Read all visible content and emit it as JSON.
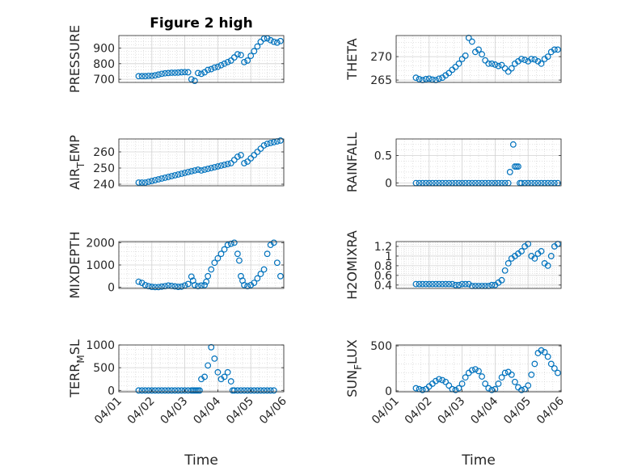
{
  "figure": {
    "background": "#ffffff",
    "marker_color": "#0072BD",
    "grid_color": "#d0d0d0"
  },
  "chart_data": [
    {
      "type": "scatter",
      "title": "Figure 2 high",
      "ylabel": "PRESSURE",
      "xlabel": "",
      "xlim": [
        0,
        5
      ],
      "ylim": [
        680,
        980
      ],
      "yticks": [
        700,
        800,
        900
      ],
      "xticks": [],
      "xticklabels": [],
      "grid": true,
      "x": [
        0.6,
        0.7,
        0.8,
        0.9,
        1.0,
        1.1,
        1.2,
        1.3,
        1.4,
        1.5,
        1.6,
        1.7,
        1.8,
        1.9,
        2.0,
        2.1,
        2.2,
        2.3,
        2.4,
        2.5,
        2.6,
        2.7,
        2.8,
        2.9,
        3.0,
        3.1,
        3.2,
        3.3,
        3.4,
        3.5,
        3.6,
        3.7,
        3.8,
        3.9,
        4.0,
        4.1,
        4.2,
        4.3,
        4.4,
        4.5,
        4.6,
        4.7,
        4.8,
        4.9
      ],
      "y": [
        720,
        720,
        720,
        722,
        722,
        725,
        730,
        735,
        738,
        740,
        742,
        742,
        743,
        745,
        746,
        745,
        700,
        690,
        740,
        735,
        745,
        760,
        765,
        775,
        780,
        790,
        800,
        810,
        820,
        840,
        860,
        855,
        810,
        820,
        850,
        880,
        910,
        940,
        960,
        962,
        950,
        940,
        935,
        945
      ]
    },
    {
      "type": "scatter",
      "ylabel": "THETA",
      "xlabel": "",
      "xlim": [
        0,
        5
      ],
      "ylim": [
        264.5,
        274.5
      ],
      "yticks": [
        265,
        270
      ],
      "xticks": [],
      "xticklabels": [],
      "grid": true,
      "x": [
        0.6,
        0.7,
        0.8,
        0.9,
        1.0,
        1.1,
        1.2,
        1.3,
        1.4,
        1.5,
        1.6,
        1.7,
        1.8,
        1.9,
        2.0,
        2.1,
        2.2,
        2.3,
        2.4,
        2.5,
        2.6,
        2.7,
        2.8,
        2.9,
        3.0,
        3.1,
        3.2,
        3.3,
        3.4,
        3.5,
        3.6,
        3.7,
        3.8,
        3.9,
        4.0,
        4.1,
        4.2,
        4.3,
        4.4,
        4.5,
        4.6,
        4.7,
        4.8,
        4.9
      ],
      "y": [
        265.5,
        265.2,
        265.0,
        265.2,
        265.3,
        265.1,
        265.0,
        265.3,
        265.5,
        266.0,
        266.5,
        267.2,
        267.8,
        268.5,
        269.5,
        270.2,
        274.0,
        273.2,
        271.0,
        271.5,
        270.5,
        269.2,
        268.5,
        268.5,
        268.3,
        268.0,
        268.2,
        267.5,
        266.8,
        267.5,
        268.5,
        269.0,
        269.5,
        269.3,
        269.0,
        269.5,
        269.4,
        269.0,
        268.5,
        269.5,
        270.0,
        271.0,
        271.5,
        271.5
      ]
    },
    {
      "type": "scatter",
      "ylabel": "AIR_TEMP",
      "ylabel_main": "AIR",
      "ylabel_sub": "T",
      "ylabel_rest": "EMP",
      "xlabel": "",
      "xlim": [
        0,
        5
      ],
      "ylim": [
        239,
        268
      ],
      "yticks": [
        240,
        250,
        260
      ],
      "xticks": [],
      "xticklabels": [],
      "grid": true,
      "x": [
        0.6,
        0.7,
        0.8,
        0.9,
        1.0,
        1.1,
        1.2,
        1.3,
        1.4,
        1.5,
        1.6,
        1.7,
        1.8,
        1.9,
        2.0,
        2.1,
        2.2,
        2.3,
        2.4,
        2.5,
        2.6,
        2.7,
        2.8,
        2.9,
        3.0,
        3.1,
        3.2,
        3.3,
        3.4,
        3.5,
        3.6,
        3.7,
        3.8,
        3.9,
        4.0,
        4.1,
        4.2,
        4.3,
        4.4,
        4.5,
        4.6,
        4.7,
        4.8,
        4.9
      ],
      "y": [
        241,
        241,
        241,
        241.5,
        242,
        242.5,
        243,
        243.5,
        244,
        244.5,
        245,
        245.5,
        246,
        246.5,
        247,
        247.5,
        248,
        248.5,
        249,
        248.5,
        249,
        249.5,
        250,
        250.5,
        251,
        251.5,
        252,
        252.5,
        253,
        255,
        257,
        258,
        253,
        254,
        256,
        258,
        260,
        262,
        264,
        265,
        265.5,
        266,
        266.5,
        267
      ]
    },
    {
      "type": "scatter",
      "ylabel": "RAINFALL",
      "xlabel": "",
      "xlim": [
        0,
        5
      ],
      "ylim": [
        -0.05,
        0.8
      ],
      "yticks": [
        0,
        0.5
      ],
      "xticks": [],
      "xticklabels": [],
      "grid": true,
      "x": [
        0.6,
        0.7,
        0.8,
        0.9,
        1.0,
        1.1,
        1.2,
        1.3,
        1.4,
        1.5,
        1.6,
        1.7,
        1.8,
        1.9,
        2.0,
        2.1,
        2.2,
        2.3,
        2.4,
        2.5,
        2.6,
        2.7,
        2.8,
        2.9,
        3.0,
        3.1,
        3.2,
        3.3,
        3.4,
        3.45,
        3.55,
        3.6,
        3.65,
        3.7,
        3.75,
        3.8,
        3.9,
        4.0,
        4.1,
        4.2,
        4.3,
        4.4,
        4.5,
        4.6,
        4.7,
        4.8,
        4.9
      ],
      "y": [
        0,
        0,
        0,
        0,
        0,
        0,
        0,
        0,
        0,
        0,
        0,
        0,
        0,
        0,
        0,
        0,
        0,
        0,
        0,
        0,
        0,
        0,
        0,
        0,
        0,
        0,
        0,
        0,
        0,
        0.2,
        0.7,
        0.3,
        0.3,
        0.3,
        0,
        0,
        0,
        0,
        0,
        0,
        0,
        0,
        0,
        0,
        0,
        0,
        0
      ]
    },
    {
      "type": "scatter",
      "ylabel": "MIXDEPTH",
      "xlabel": "",
      "xlim": [
        0,
        5
      ],
      "ylim": [
        -50,
        2050
      ],
      "yticks": [
        0,
        1000,
        2000
      ],
      "xticks": [],
      "xticklabels": [],
      "grid": true,
      "x": [
        0.6,
        0.7,
        0.8,
        0.9,
        1.0,
        1.1,
        1.2,
        1.3,
        1.4,
        1.5,
        1.6,
        1.7,
        1.8,
        1.9,
        2.0,
        2.1,
        2.2,
        2.25,
        2.3,
        2.4,
        2.5,
        2.6,
        2.65,
        2.7,
        2.8,
        2.9,
        3.0,
        3.1,
        3.2,
        3.3,
        3.4,
        3.5,
        3.6,
        3.65,
        3.7,
        3.75,
        3.8,
        3.9,
        4.0,
        4.1,
        4.2,
        4.3,
        4.4,
        4.5,
        4.6,
        4.7,
        4.8,
        4.9
      ],
      "y": [
        250,
        200,
        100,
        50,
        20,
        10,
        10,
        30,
        50,
        80,
        60,
        40,
        20,
        30,
        80,
        150,
        480,
        300,
        100,
        50,
        80,
        100,
        250,
        500,
        800,
        1100,
        1300,
        1500,
        1700,
        1900,
        1950,
        2000,
        1500,
        1200,
        500,
        300,
        100,
        50,
        100,
        200,
        400,
        600,
        800,
        1500,
        1900,
        2000,
        1100,
        500
      ]
    },
    {
      "type": "scatter",
      "ylabel": "H2OMIXRA",
      "xlabel": "",
      "xlim": [
        0,
        5
      ],
      "ylim": [
        0.33,
        1.3
      ],
      "yticks": [
        0.4,
        0.6,
        0.8,
        1,
        1.2
      ],
      "xticks": [],
      "xticklabels": [],
      "grid": true,
      "x": [
        0.6,
        0.7,
        0.8,
        0.9,
        1.0,
        1.1,
        1.2,
        1.3,
        1.4,
        1.5,
        1.6,
        1.7,
        1.8,
        1.9,
        2.0,
        2.1,
        2.2,
        2.3,
        2.4,
        2.5,
        2.6,
        2.7,
        2.8,
        2.9,
        3.0,
        3.1,
        3.2,
        3.3,
        3.4,
        3.5,
        3.6,
        3.7,
        3.8,
        3.9,
        4.0,
        4.1,
        4.2,
        4.3,
        4.4,
        4.5,
        4.6,
        4.7,
        4.8,
        4.9
      ],
      "y": [
        0.42,
        0.42,
        0.42,
        0.42,
        0.42,
        0.42,
        0.42,
        0.42,
        0.42,
        0.42,
        0.42,
        0.42,
        0.4,
        0.4,
        0.42,
        0.42,
        0.42,
        0.38,
        0.38,
        0.38,
        0.38,
        0.38,
        0.38,
        0.4,
        0.4,
        0.45,
        0.5,
        0.7,
        0.85,
        0.95,
        1.0,
        1.05,
        1.1,
        1.2,
        1.25,
        1.0,
        0.95,
        1.05,
        1.1,
        0.85,
        0.8,
        1.0,
        1.2,
        1.25
      ]
    },
    {
      "type": "scatter",
      "ylabel": "TERR_MSL",
      "ylabel_main": "TERR",
      "ylabel_sub": "M",
      "ylabel_rest": "SL",
      "xlabel": "Time",
      "xlim": [
        0,
        5
      ],
      "ylim": [
        -30,
        1000
      ],
      "yticks": [
        0,
        500,
        1000
      ],
      "xticks": [
        0,
        1,
        2,
        3,
        4,
        5
      ],
      "xticklabels": [
        "04/01",
        "04/02",
        "04/03",
        "04/04",
        "04/05",
        "04/06"
      ],
      "grid": true,
      "x": [
        0.6,
        0.7,
        0.8,
        0.9,
        1.0,
        1.1,
        1.2,
        1.3,
        1.4,
        1.5,
        1.6,
        1.7,
        1.8,
        1.9,
        2.0,
        2.1,
        2.2,
        2.25,
        2.3,
        2.35,
        2.4,
        2.45,
        2.5,
        2.6,
        2.7,
        2.8,
        2.9,
        3.0,
        3.1,
        3.2,
        3.3,
        3.4,
        3.45,
        3.5,
        3.6,
        3.7,
        3.8,
        3.9,
        4.0,
        4.1,
        4.2,
        4.3,
        4.4,
        4.5,
        4.6,
        4.7
      ],
      "y": [
        0,
        0,
        0,
        0,
        0,
        0,
        0,
        0,
        0,
        0,
        0,
        0,
        0,
        0,
        0,
        0,
        0,
        0,
        0,
        0,
        0,
        0,
        250,
        300,
        550,
        950,
        700,
        400,
        250,
        300,
        400,
        200,
        0,
        0,
        0,
        0,
        0,
        0,
        0,
        0,
        0,
        0,
        0,
        0,
        0,
        0
      ]
    },
    {
      "type": "scatter",
      "ylabel": "SUN_FLUX",
      "ylabel_main": "SUN",
      "ylabel_sub": "F",
      "ylabel_rest": "LUX",
      "xlabel": "Time",
      "xlim": [
        0,
        5
      ],
      "ylim": [
        -10,
        510
      ],
      "yticks": [
        0,
        500
      ],
      "xticks": [
        0,
        1,
        2,
        3,
        4,
        5
      ],
      "xticklabels": [
        "04/01",
        "04/02",
        "04/03",
        "04/04",
        "04/05",
        "04/06"
      ],
      "grid": true,
      "x": [
        0.6,
        0.7,
        0.8,
        0.9,
        1.0,
        1.1,
        1.2,
        1.3,
        1.4,
        1.5,
        1.6,
        1.7,
        1.8,
        1.9,
        2.0,
        2.1,
        2.2,
        2.3,
        2.4,
        2.5,
        2.6,
        2.7,
        2.8,
        2.9,
        3.0,
        3.1,
        3.2,
        3.3,
        3.4,
        3.5,
        3.6,
        3.7,
        3.8,
        3.9,
        4.0,
        4.1,
        4.2,
        4.3,
        4.4,
        4.5,
        4.6,
        4.7,
        4.8,
        4.9
      ],
      "y": [
        30,
        20,
        10,
        20,
        50,
        80,
        110,
        130,
        120,
        100,
        60,
        20,
        10,
        30,
        80,
        150,
        200,
        230,
        240,
        220,
        160,
        80,
        30,
        10,
        20,
        80,
        150,
        200,
        210,
        180,
        100,
        40,
        10,
        20,
        60,
        180,
        300,
        420,
        450,
        430,
        380,
        300,
        250,
        200
      ]
    }
  ]
}
